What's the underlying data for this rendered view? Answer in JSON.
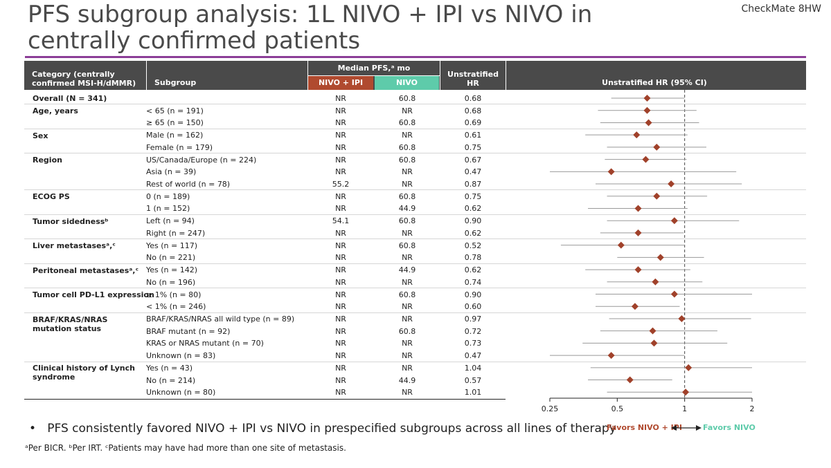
{
  "title": "PFS subgroup analysis: 1L NIVO + IPI vs NIVO in centrally confirmed patients",
  "study_badge": "CheckMate 8HW",
  "colors": {
    "accent_rule": "#8b3d97",
    "nivo_ipi": "#b04a2f",
    "nivo": "#5ecbaa",
    "marker": "#a0412a",
    "header_bg": "#4a4a4a"
  },
  "table": {
    "headers": {
      "category": "Category (centrally confirmed MSI-H/dMMR)",
      "subgroup": "Subgroup",
      "median_pfs": "Median PFS,ᵃ mo",
      "nivo_ipi": "NIVO + IPI",
      "nivo": "NIVO",
      "hr": "Unstratified HR",
      "plot": "Unstratified HR (95% CI)"
    },
    "categories": [
      "Overall (N = 341)",
      "Age, years",
      "Sex",
      "Region",
      "ECOG PS",
      "Tumor sidednessᵇ",
      "Liver metastasesᵃ,ᶜ",
      "Peritoneal metastasesᵃ,ᶜ",
      "Tumor cell PD-L1 expression",
      "BRAF/KRAS/NRAS mutation status",
      "Clinical history of Lynch syndrome"
    ],
    "rows": [
      {
        "subgroup": "",
        "nivo_ipi": "NR",
        "nivo": "60.8",
        "hr": "0.68"
      },
      {
        "subgroup": "< 65 (n = 191)",
        "nivo_ipi": "NR",
        "nivo": "NR",
        "hr": "0.68"
      },
      {
        "subgroup": "≥ 65 (n = 150)",
        "nivo_ipi": "NR",
        "nivo": "60.8",
        "hr": "0.69"
      },
      {
        "subgroup": "Male (n = 162)",
        "nivo_ipi": "NR",
        "nivo": "NR",
        "hr": "0.61"
      },
      {
        "subgroup": "Female (n = 179)",
        "nivo_ipi": "NR",
        "nivo": "60.8",
        "hr": "0.75"
      },
      {
        "subgroup": "US/Canada/Europe (n = 224)",
        "nivo_ipi": "NR",
        "nivo": "60.8",
        "hr": "0.67"
      },
      {
        "subgroup": "Asia (n = 39)",
        "nivo_ipi": "NR",
        "nivo": "NR",
        "hr": "0.47"
      },
      {
        "subgroup": "Rest of world (n = 78)",
        "nivo_ipi": "55.2",
        "nivo": "NR",
        "hr": "0.87"
      },
      {
        "subgroup": "0 (n = 189)",
        "nivo_ipi": "NR",
        "nivo": "60.8",
        "hr": "0.75"
      },
      {
        "subgroup": "1 (n = 152)",
        "nivo_ipi": "NR",
        "nivo": "44.9",
        "hr": "0.62"
      },
      {
        "subgroup": "Left (n = 94)",
        "nivo_ipi": "54.1",
        "nivo": "60.8",
        "hr": "0.90"
      },
      {
        "subgroup": "Right (n = 247)",
        "nivo_ipi": "NR",
        "nivo": "NR",
        "hr": "0.62"
      },
      {
        "subgroup": "Yes (n = 117)",
        "nivo_ipi": "NR",
        "nivo": "60.8",
        "hr": "0.52"
      },
      {
        "subgroup": "No (n = 221)",
        "nivo_ipi": "NR",
        "nivo": "NR",
        "hr": "0.78"
      },
      {
        "subgroup": "Yes (n = 142)",
        "nivo_ipi": "NR",
        "nivo": "44.9",
        "hr": "0.62"
      },
      {
        "subgroup": "No (n = 196)",
        "nivo_ipi": "NR",
        "nivo": "NR",
        "hr": "0.74"
      },
      {
        "subgroup": "≥ 1% (n = 80)",
        "nivo_ipi": "NR",
        "nivo": "60.8",
        "hr": "0.90"
      },
      {
        "subgroup": "< 1% (n = 246)",
        "nivo_ipi": "NR",
        "nivo": "NR",
        "hr": "0.60"
      },
      {
        "subgroup": "BRAF/KRAS/NRAS all wild type (n = 89)",
        "nivo_ipi": "NR",
        "nivo": "NR",
        "hr": "0.97"
      },
      {
        "subgroup": "BRAF mutant (n = 92)",
        "nivo_ipi": "NR",
        "nivo": "60.8",
        "hr": "0.72"
      },
      {
        "subgroup": "KRAS or NRAS mutant (n = 70)",
        "nivo_ipi": "NR",
        "nivo": "NR",
        "hr": "0.73"
      },
      {
        "subgroup": "Unknown (n = 83)",
        "nivo_ipi": "NR",
        "nivo": "NR",
        "hr": "0.47"
      },
      {
        "subgroup": "Yes (n = 43)",
        "nivo_ipi": "NR",
        "nivo": "NR",
        "hr": "1.04"
      },
      {
        "subgroup": "No (n = 214)",
        "nivo_ipi": "NR",
        "nivo": "44.9",
        "hr": "0.57"
      },
      {
        "subgroup": "Unknown (n = 80)",
        "nivo_ipi": "NR",
        "nivo": "NR",
        "hr": "1.01"
      }
    ]
  },
  "chart_data": {
    "type": "scatter",
    "title": "Unstratified HR (95% CI)",
    "scale": "log2",
    "xlim": [
      0.25,
      2
    ],
    "xticks": [
      "0.25",
      "0.5",
      "1",
      "2"
    ],
    "reference_line": 1,
    "favors_left": "Favors NIVO + IPI",
    "favors_right": "Favors NIVO",
    "points": [
      {
        "hr": 0.68,
        "lo": 0.47,
        "hi": 1.0
      },
      {
        "hr": 0.68,
        "lo": 0.41,
        "hi": 1.13
      },
      {
        "hr": 0.69,
        "lo": 0.42,
        "hi": 1.16
      },
      {
        "hr": 0.61,
        "lo": 0.36,
        "hi": 1.03
      },
      {
        "hr": 0.75,
        "lo": 0.45,
        "hi": 1.25
      },
      {
        "hr": 0.67,
        "lo": 0.44,
        "hi": 1.02
      },
      {
        "hr": 0.47,
        "lo": 0.25,
        "hi": 1.7
      },
      {
        "hr": 0.87,
        "lo": 0.4,
        "hi": 1.8
      },
      {
        "hr": 0.75,
        "lo": 0.45,
        "hi": 1.26
      },
      {
        "hr": 0.62,
        "lo": 0.37,
        "hi": 1.03
      },
      {
        "hr": 0.9,
        "lo": 0.45,
        "hi": 1.75
      },
      {
        "hr": 0.62,
        "lo": 0.42,
        "hi": 0.99
      },
      {
        "hr": 0.52,
        "lo": 0.28,
        "hi": 1.0
      },
      {
        "hr": 0.78,
        "lo": 0.5,
        "hi": 1.22
      },
      {
        "hr": 0.62,
        "lo": 0.36,
        "hi": 1.06
      },
      {
        "hr": 0.74,
        "lo": 0.45,
        "hi": 1.2
      },
      {
        "hr": 0.9,
        "lo": 0.4,
        "hi": 2.0
      },
      {
        "hr": 0.6,
        "lo": 0.4,
        "hi": 0.95
      },
      {
        "hr": 0.97,
        "lo": 0.46,
        "hi": 1.98
      },
      {
        "hr": 0.72,
        "lo": 0.42,
        "hi": 1.4
      },
      {
        "hr": 0.73,
        "lo": 0.35,
        "hi": 1.55
      },
      {
        "hr": 0.47,
        "lo": 0.25,
        "hi": 1.0
      },
      {
        "hr": 1.04,
        "lo": 0.38,
        "hi": 2.0
      },
      {
        "hr": 0.57,
        "lo": 0.37,
        "hi": 0.88
      },
      {
        "hr": 1.01,
        "lo": 0.45,
        "hi": 2.0
      }
    ]
  },
  "bullet": "PFS consistently favored NIVO + IPI vs NIVO in prespecified subgroups across all lines of therapy",
  "footnote": "ᵃPer BICR. ᵇPer IRT. ᶜPatients may have had more than one site of metastasis."
}
